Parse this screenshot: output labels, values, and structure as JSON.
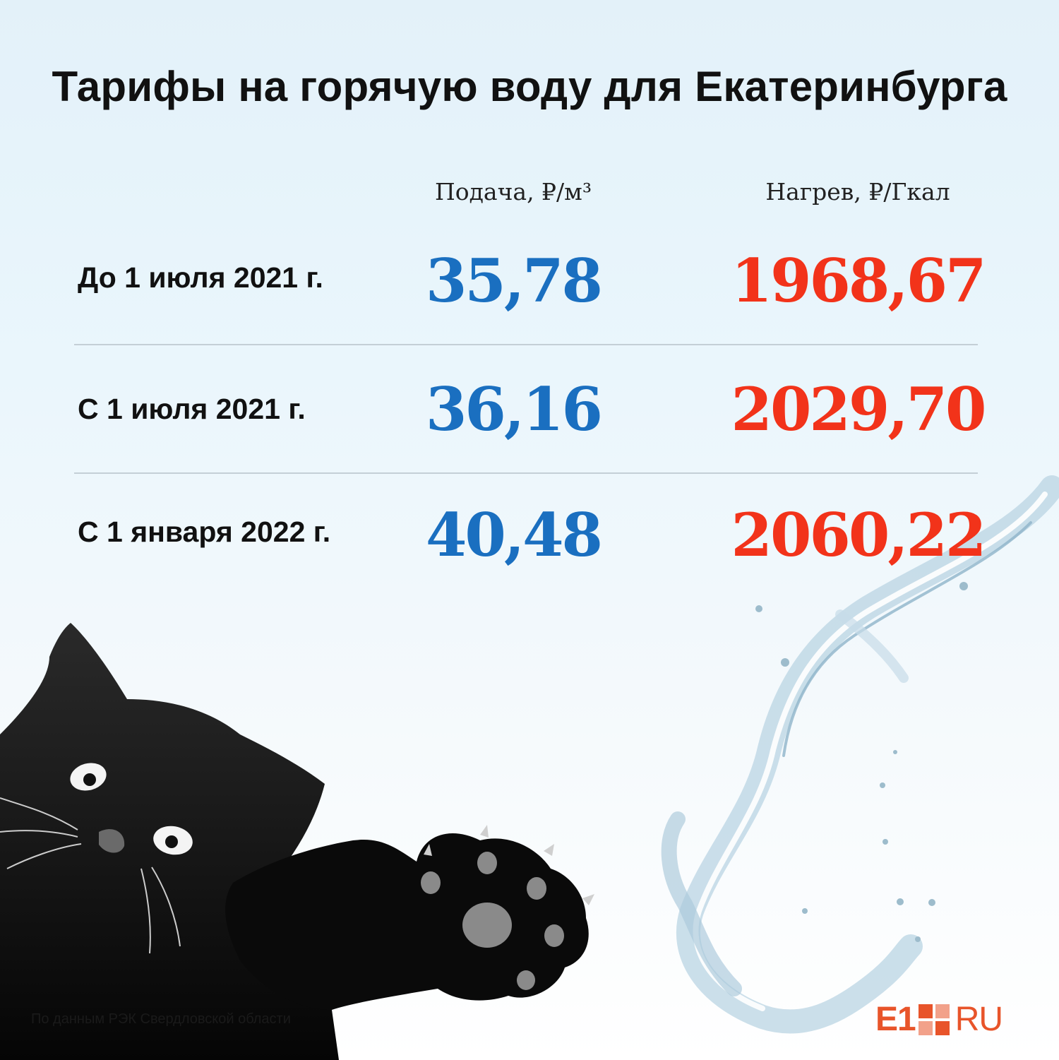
{
  "title": "Тарифы на горячую воду для Екатеринбурга",
  "columns": {
    "supply": "Подача, ₽/м³",
    "heating": "Нагрев, ₽/Гкал"
  },
  "rows": [
    {
      "label": "До 1 июля 2021 г.",
      "supply": "35,78",
      "heating": "1968,67"
    },
    {
      "label": "С 1 июля 2021 г.",
      "supply": "36,16",
      "heating": "2029,70"
    },
    {
      "label": "С 1 января 2022 г.",
      "supply": "40,48",
      "heating": "2060,22"
    }
  ],
  "source": "По данным РЭК Свердловской области",
  "logo": {
    "left": "E1",
    "right": "RU"
  },
  "colors": {
    "supply_value": "#1a6fc0",
    "heating_value": "#f2331a",
    "logo": "#e8542a",
    "background_top": "#e3f1f9"
  },
  "illustrations": [
    "black-cat-icon",
    "water-splash-icon"
  ]
}
